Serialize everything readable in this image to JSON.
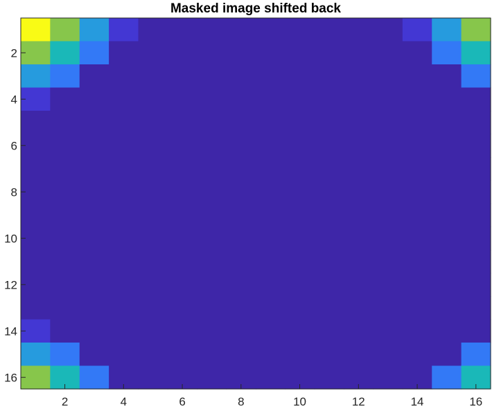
{
  "chart_data": {
    "type": "heatmap",
    "title": "Masked image shifted back",
    "xlabel": "",
    "ylabel": "",
    "x_ticks": [
      2,
      4,
      6,
      8,
      10,
      12,
      14,
      16
    ],
    "y_ticks": [
      2,
      4,
      6,
      8,
      10,
      12,
      14,
      16
    ],
    "xlim": [
      0.5,
      16.5
    ],
    "ylim": [
      0.5,
      16.5
    ],
    "y_direction": "reverse",
    "colormap": "parula",
    "color_range": [
      0,
      1
    ],
    "colormap_stops": [
      "#3e26a8",
      "#4743f0",
      "#2e87f7",
      "#1ab8b8",
      "#93c83f",
      "#f9fb15"
    ],
    "rows": 16,
    "cols": 16,
    "values": [
      [
        1.0,
        0.78,
        0.48,
        0.12,
        0,
        0,
        0,
        0,
        0,
        0,
        0,
        0,
        0,
        0.12,
        0.48,
        0.78
      ],
      [
        0.78,
        0.6,
        0.36,
        0,
        0,
        0,
        0,
        0,
        0,
        0,
        0,
        0,
        0,
        0,
        0.36,
        0.6
      ],
      [
        0.48,
        0.36,
        0,
        0,
        0,
        0,
        0,
        0,
        0,
        0,
        0,
        0,
        0,
        0,
        0,
        0.36
      ],
      [
        0.12,
        0,
        0,
        0,
        0,
        0,
        0,
        0,
        0,
        0,
        0,
        0,
        0,
        0,
        0,
        0
      ],
      [
        0,
        0,
        0,
        0,
        0,
        0,
        0,
        0,
        0,
        0,
        0,
        0,
        0,
        0,
        0,
        0
      ],
      [
        0,
        0,
        0,
        0,
        0,
        0,
        0,
        0,
        0,
        0,
        0,
        0,
        0,
        0,
        0,
        0
      ],
      [
        0,
        0,
        0,
        0,
        0,
        0,
        0,
        0,
        0,
        0,
        0,
        0,
        0,
        0,
        0,
        0
      ],
      [
        0,
        0,
        0,
        0,
        0,
        0,
        0,
        0,
        0,
        0,
        0,
        0,
        0,
        0,
        0,
        0
      ],
      [
        0,
        0,
        0,
        0,
        0,
        0,
        0,
        0,
        0,
        0,
        0,
        0,
        0,
        0,
        0,
        0
      ],
      [
        0,
        0,
        0,
        0,
        0,
        0,
        0,
        0,
        0,
        0,
        0,
        0,
        0,
        0,
        0,
        0
      ],
      [
        0,
        0,
        0,
        0,
        0,
        0,
        0,
        0,
        0,
        0,
        0,
        0,
        0,
        0,
        0,
        0
      ],
      [
        0,
        0,
        0,
        0,
        0,
        0,
        0,
        0,
        0,
        0,
        0,
        0,
        0,
        0,
        0,
        0
      ],
      [
        0,
        0,
        0,
        0,
        0,
        0,
        0,
        0,
        0,
        0,
        0,
        0,
        0,
        0,
        0,
        0
      ],
      [
        0.12,
        0,
        0,
        0,
        0,
        0,
        0,
        0,
        0,
        0,
        0,
        0,
        0,
        0,
        0,
        0
      ],
      [
        0.48,
        0.36,
        0,
        0,
        0,
        0,
        0,
        0,
        0,
        0,
        0,
        0,
        0,
        0,
        0,
        0.36
      ],
      [
        0.78,
        0.6,
        0.36,
        0,
        0,
        0,
        0,
        0,
        0,
        0,
        0,
        0,
        0,
        0,
        0.36,
        0.6
      ]
    ]
  }
}
